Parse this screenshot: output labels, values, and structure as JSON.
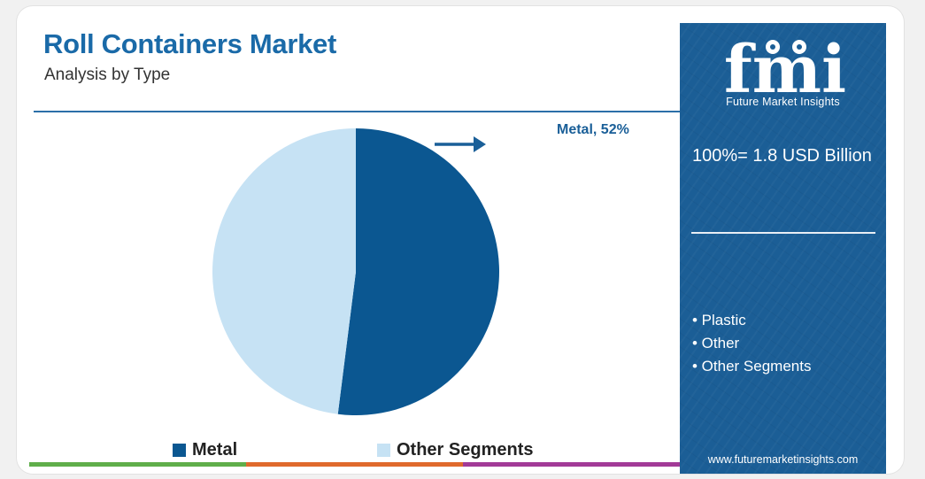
{
  "header": {
    "title": "Roll Containers Market",
    "subtitle": "Analysis by Type"
  },
  "chart_data": {
    "type": "pie",
    "slices": [
      {
        "label": "Metal",
        "value": 52,
        "color": "#0b5791"
      },
      {
        "label": "Other Segments",
        "value": 48,
        "color": "#c6e2f4"
      }
    ],
    "callout": "Metal, 52%",
    "legend": [
      "Metal",
      "Other Segments"
    ]
  },
  "side_panel": {
    "brand_letters": "fmi",
    "brand_name": "Future Market Insights",
    "total_label": "100%= 1.8 USD Billion",
    "other_segments": [
      "• Plastic",
      "• Other",
      "• Other Segments"
    ],
    "website": "www.futuremarketinsights.com"
  },
  "colors": {
    "title": "#1a6aa8",
    "panel": "#1b5e96",
    "bottom_bar": [
      "#5fae4a",
      "#e06a2c",
      "#a23a97"
    ]
  }
}
